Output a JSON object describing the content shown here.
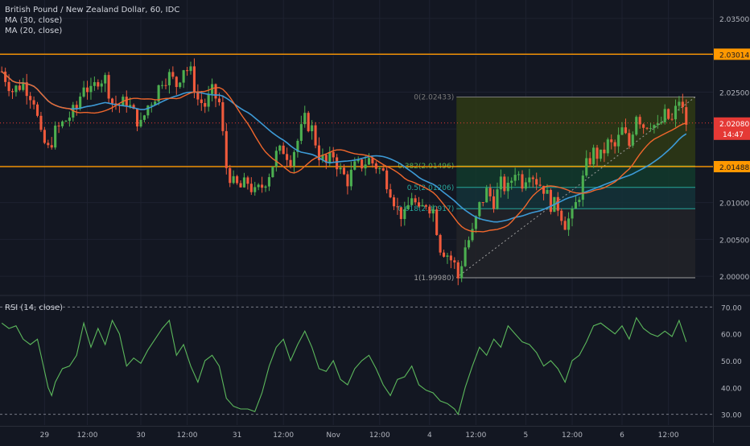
{
  "chart_data": {
    "type": "candlestick",
    "title": "British Pound / New Zealand Dollar, 60, IDC",
    "indicators": [
      "MA (30, close)",
      "MA (20, close)"
    ],
    "colors": {
      "background": "#131722",
      "up": "#4caf50",
      "down": "#f05a3c",
      "ma30": "#3d9ad6",
      "ma20": "#f0672c",
      "level": "#ff9800",
      "rsi": "#5cb85c",
      "price_line": "#e53935",
      "fib_top": "#2f3a14",
      "fib_mid1": "#123a2c",
      "fib_mid2": "#143238",
      "fib_bottom": "#222328"
    },
    "price_axis": {
      "ylim": [
        1.9975,
        2.0375
      ],
      "ticks": [
        "2.03500",
        "2.03000",
        "2.02500",
        "2.02000",
        "2.01500",
        "2.01000",
        "2.00500",
        "2.00000"
      ],
      "tick_values": [
        2.035,
        2.03,
        2.025,
        2.02,
        2.015,
        2.01,
        2.005,
        2.0
      ]
    },
    "horizontal_levels": [
      {
        "value": 2.03014,
        "label": "2.03014"
      },
      {
        "value": 2.01488,
        "label": "2.01488"
      }
    ],
    "last_price": {
      "value": 2.0208,
      "label": "2.02080",
      "countdown": "14:47"
    },
    "fibonacci": {
      "from": 1.9998,
      "to": 2.02433,
      "levels": [
        {
          "label": "0(2.02433)",
          "value": 2.02433
        },
        {
          "label": "0.382(2.01496)",
          "value": 2.01496
        },
        {
          "label": "0.5(2.01206)",
          "value": 2.01206
        },
        {
          "label": "0.618(2.00917)",
          "value": 2.00917
        },
        {
          "label": "1(1.99980)",
          "value": 1.9998
        }
      ]
    },
    "time_axis": {
      "bar_count": 200,
      "ticks": [
        {
          "label": "29",
          "bar": 12
        },
        {
          "label": "12:00",
          "bar": 24
        },
        {
          "label": "30",
          "bar": 39
        },
        {
          "label": "12:00",
          "bar": 52
        },
        {
          "label": "31",
          "bar": 66
        },
        {
          "label": "12:00",
          "bar": 79
        },
        {
          "label": "Nov",
          "bar": 93
        },
        {
          "label": "12:00",
          "bar": 106
        },
        {
          "label": "4",
          "bar": 120
        },
        {
          "label": "12:00",
          "bar": 133
        },
        {
          "label": "5",
          "bar": 147
        },
        {
          "label": "12:00",
          "bar": 160
        },
        {
          "label": "6",
          "bar": 174
        },
        {
          "label": "12:00",
          "bar": 187
        }
      ]
    },
    "close_path": [
      [
        0,
        2.0278
      ],
      [
        3,
        2.0252
      ],
      [
        6,
        2.0262
      ],
      [
        9,
        2.024
      ],
      [
        11,
        2.0188
      ],
      [
        13,
        2.0172
      ],
      [
        15,
        2.0196
      ],
      [
        18,
        2.0212
      ],
      [
        21,
        2.0228
      ],
      [
        23,
        2.0262
      ],
      [
        25,
        2.0248
      ],
      [
        27,
        2.0268
      ],
      [
        29,
        2.0268
      ],
      [
        31,
        2.0236
      ],
      [
        33,
        2.0232
      ],
      [
        35,
        2.0238
      ],
      [
        37,
        2.022
      ],
      [
        39,
        2.0205
      ],
      [
        41,
        2.0232
      ],
      [
        43,
        2.0245
      ],
      [
        45,
        2.0268
      ],
      [
        47,
        2.0272
      ],
      [
        49,
        2.026
      ],
      [
        51,
        2.0284
      ],
      [
        53,
        2.0276
      ],
      [
        55,
        2.024
      ],
      [
        57,
        2.0232
      ],
      [
        59,
        2.025
      ],
      [
        61,
        2.0235
      ],
      [
        63,
        2.0148
      ],
      [
        65,
        2.0125
      ],
      [
        67,
        2.012
      ],
      [
        69,
        2.0128
      ],
      [
        71,
        2.0112
      ],
      [
        73,
        2.0122
      ],
      [
        75,
        2.014
      ],
      [
        77,
        2.0165
      ],
      [
        79,
        2.0172
      ],
      [
        81,
        2.016
      ],
      [
        83,
        2.0184
      ],
      [
        85,
        2.0212
      ],
      [
        87,
        2.02
      ],
      [
        89,
        2.0165
      ],
      [
        91,
        2.0152
      ],
      [
        93,
        2.0165
      ],
      [
        95,
        2.0142
      ],
      [
        97,
        2.013
      ],
      [
        99,
        2.0148
      ],
      [
        101,
        2.0152
      ],
      [
        103,
        2.0158
      ],
      [
        105,
        2.015
      ],
      [
        107,
        2.014
      ],
      [
        109,
        2.0118
      ],
      [
        111,
        2.009
      ],
      [
        113,
        2.008
      ],
      [
        115,
        2.011
      ],
      [
        117,
        2.0085
      ],
      [
        119,
        2.01
      ],
      [
        121,
        2.009
      ],
      [
        123,
        2.004
      ],
      [
        125,
        2.003
      ],
      [
        127,
        2.0015
      ],
      [
        128,
        1.9998
      ],
      [
        130,
        2.004
      ],
      [
        132,
        2.0058
      ],
      [
        134,
        2.0095
      ],
      [
        136,
        2.0115
      ],
      [
        138,
        2.0102
      ],
      [
        140,
        2.0125
      ],
      [
        142,
        2.0118
      ],
      [
        144,
        2.0145
      ],
      [
        146,
        2.0128
      ],
      [
        148,
        2.0145
      ],
      [
        150,
        2.013
      ],
      [
        152,
        2.012
      ],
      [
        154,
        2.0098
      ],
      [
        156,
        2.0095
      ],
      [
        158,
        2.0072
      ],
      [
        160,
        2.0082
      ],
      [
        162,
        2.0112
      ],
      [
        164,
        2.015
      ],
      [
        166,
        2.0168
      ],
      [
        168,
        2.0162
      ],
      [
        170,
        2.018
      ],
      [
        172,
        2.0175
      ],
      [
        174,
        2.0198
      ],
      [
        176,
        2.0178
      ],
      [
        178,
        2.0222
      ],
      [
        180,
        2.0205
      ],
      [
        182,
        2.021
      ],
      [
        184,
        2.02
      ],
      [
        186,
        2.0218
      ],
      [
        188,
        2.021
      ],
      [
        190,
        2.024
      ],
      [
        192,
        2.0208
      ]
    ],
    "rsi": {
      "title": "RSI (14, close)",
      "ylim": [
        26,
        74
      ],
      "ticks": [
        "70.00",
        "60.00",
        "50.00",
        "40.00",
        "30.00"
      ],
      "tick_values": [
        70,
        60,
        50,
        40,
        30
      ],
      "bands": [
        70,
        30
      ],
      "points": [
        [
          0,
          64
        ],
        [
          2,
          62
        ],
        [
          4,
          63
        ],
        [
          6,
          58
        ],
        [
          8,
          56
        ],
        [
          10,
          58
        ],
        [
          12,
          46
        ],
        [
          13,
          40
        ],
        [
          14,
          37
        ],
        [
          15,
          42
        ],
        [
          17,
          47
        ],
        [
          19,
          48
        ],
        [
          21,
          52
        ],
        [
          23,
          64
        ],
        [
          25,
          55
        ],
        [
          27,
          62
        ],
        [
          29,
          56
        ],
        [
          31,
          65
        ],
        [
          33,
          60
        ],
        [
          35,
          48
        ],
        [
          37,
          51
        ],
        [
          39,
          49
        ],
        [
          41,
          54
        ],
        [
          43,
          58
        ],
        [
          45,
          62
        ],
        [
          47,
          65
        ],
        [
          49,
          52
        ],
        [
          51,
          56
        ],
        [
          53,
          48
        ],
        [
          55,
          42
        ],
        [
          57,
          50
        ],
        [
          59,
          52
        ],
        [
          61,
          48
        ],
        [
          63,
          36
        ],
        [
          65,
          33
        ],
        [
          67,
          32
        ],
        [
          69,
          32
        ],
        [
          71,
          31
        ],
        [
          73,
          38
        ],
        [
          75,
          48
        ],
        [
          77,
          55
        ],
        [
          79,
          58
        ],
        [
          81,
          50
        ],
        [
          83,
          56
        ],
        [
          85,
          61
        ],
        [
          87,
          55
        ],
        [
          89,
          47
        ],
        [
          91,
          46
        ],
        [
          93,
          50
        ],
        [
          95,
          43
        ],
        [
          97,
          41
        ],
        [
          99,
          47
        ],
        [
          101,
          50
        ],
        [
          103,
          52
        ],
        [
          105,
          47
        ],
        [
          107,
          41
        ],
        [
          109,
          37
        ],
        [
          111,
          43
        ],
        [
          113,
          44
        ],
        [
          115,
          48
        ],
        [
          117,
          41
        ],
        [
          119,
          39
        ],
        [
          121,
          38
        ],
        [
          123,
          35
        ],
        [
          125,
          34
        ],
        [
          127,
          32
        ],
        [
          128,
          30
        ],
        [
          130,
          40
        ],
        [
          132,
          48
        ],
        [
          134,
          55
        ],
        [
          136,
          52
        ],
        [
          138,
          58
        ],
        [
          140,
          55
        ],
        [
          142,
          63
        ],
        [
          144,
          60
        ],
        [
          146,
          57
        ],
        [
          148,
          56
        ],
        [
          150,
          53
        ],
        [
          152,
          48
        ],
        [
          154,
          50
        ],
        [
          156,
          47
        ],
        [
          158,
          42
        ],
        [
          160,
          50
        ],
        [
          162,
          52
        ],
        [
          164,
          57
        ],
        [
          166,
          63
        ],
        [
          168,
          64
        ],
        [
          170,
          62
        ],
        [
          172,
          60
        ],
        [
          174,
          63
        ],
        [
          176,
          58
        ],
        [
          178,
          66
        ],
        [
          180,
          62
        ],
        [
          182,
          60
        ],
        [
          184,
          59
        ],
        [
          186,
          61
        ],
        [
          188,
          59
        ],
        [
          190,
          65
        ],
        [
          192,
          57
        ]
      ]
    }
  }
}
